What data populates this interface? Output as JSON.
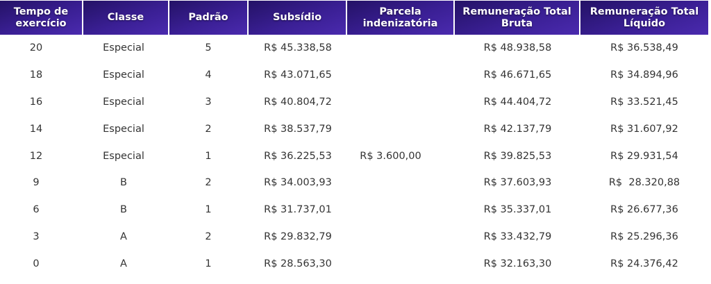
{
  "headers": [
    "Tempo de exercício",
    "Classe",
    "Padrão",
    "Subsídio",
    "Parcela indenizatória",
    "Remuneração Total Bruta",
    "Remuneração Total Líquido"
  ],
  "parcela_indenizatoria": "R$ 3.600,00",
  "rows": [
    {
      "tempo": "20",
      "classe": "Especial",
      "padrao": "5",
      "subsidio": "R$ 45.338,58",
      "bruta": "R$ 48.938,58",
      "liquido": "R$ 36.538,49"
    },
    {
      "tempo": "18",
      "classe": "Especial",
      "padrao": "4",
      "subsidio": "R$ 43.071,65",
      "bruta": "R$ 46.671,65",
      "liquido": "R$ 34.894,96"
    },
    {
      "tempo": "16",
      "classe": "Especial",
      "padrao": "3",
      "subsidio": "R$ 40.804,72",
      "bruta": "R$ 44.404,72",
      "liquido": "R$ 33.521,45"
    },
    {
      "tempo": "14",
      "classe": "Especial",
      "padrao": "2",
      "subsidio": "R$ 38.537,79",
      "bruta": "R$ 42.137,79",
      "liquido": "R$ 31.607,92"
    },
    {
      "tempo": "12",
      "classe": "Especial",
      "padrao": "1",
      "subsidio": "R$ 36.225,53",
      "bruta": "R$ 39.825,53",
      "liquido": "R$ 29.931,54"
    },
    {
      "tempo": "9",
      "classe": "B",
      "padrao": "2",
      "subsidio": "R$ 34.003,93",
      "bruta": "R$ 37.603,93",
      "liquido": "R$  28.320,88"
    },
    {
      "tempo": "6",
      "classe": "B",
      "padrao": "1",
      "subsidio": "R$ 31.737,01",
      "bruta": "R$ 35.337,01",
      "liquido": "R$ 26.677,36"
    },
    {
      "tempo": "3",
      "classe": "A",
      "padrao": "2",
      "subsidio": "R$ 29.832,79",
      "bruta": "R$ 33.432,79",
      "liquido": "R$ 25.296,36"
    },
    {
      "tempo": "0",
      "classe": "A",
      "padrao": "1",
      "subsidio": "R$ 28.563,30",
      "bruta": "R$ 32.163,30",
      "liquido": "R$ 24.376,42"
    }
  ],
  "colors": {
    "header_dark": "#241266",
    "header_light": "#4a2aae",
    "header_text": "#ffffff",
    "cell_text": "#333333"
  }
}
